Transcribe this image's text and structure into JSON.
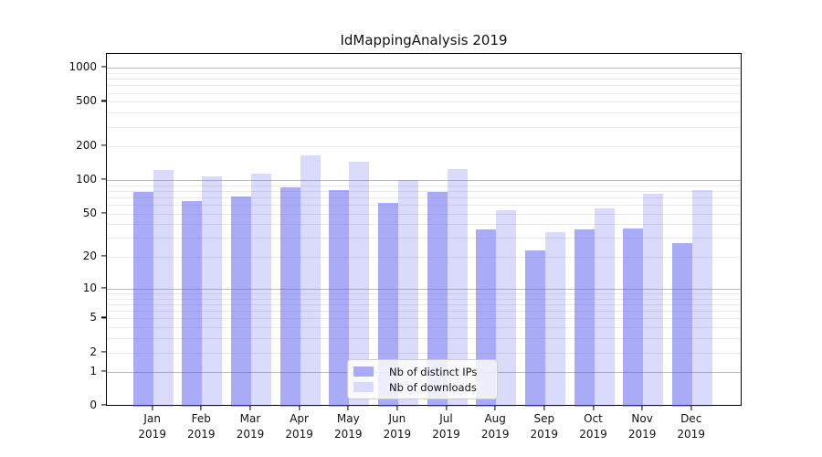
{
  "title": "IdMappingAnalysis 2019",
  "chart_data": {
    "type": "bar",
    "categories": [
      "Jan",
      "Feb",
      "Mar",
      "Apr",
      "May",
      "Jun",
      "Jul",
      "Aug",
      "Sep",
      "Oct",
      "Nov",
      "Dec"
    ],
    "year_label": "2019",
    "series": [
      {
        "name": "Nb of distinct IPs",
        "values": [
          78,
          65,
          72,
          87,
          81,
          62,
          78,
          36,
          23,
          36,
          37,
          27
        ],
        "fill": "rgba(85,87,238,0.5)",
        "swatch": "#aaabf6"
      },
      {
        "name": "Nb of downloads",
        "values": [
          124,
          109,
          115,
          166,
          146,
          101,
          125,
          54,
          34,
          56,
          75,
          81
        ],
        "fill": "rgba(85,87,238,0.22)",
        "swatch": "#dadbfb"
      }
    ],
    "yscale": "log1p",
    "ylim": [
      0,
      1330
    ],
    "ytick_labels": [
      "0",
      "1",
      "2",
      "5",
      "10",
      "20",
      "50",
      "100",
      "200",
      "500",
      "1000"
    ],
    "ytick_values": [
      0,
      1,
      2,
      5,
      10,
      20,
      50,
      100,
      200,
      500,
      1000
    ],
    "major_gridlines": [
      1,
      10,
      100,
      1000
    ],
    "minor_gridlines": [
      2,
      3,
      4,
      5,
      6,
      7,
      8,
      9,
      20,
      30,
      40,
      50,
      60,
      70,
      80,
      90,
      200,
      300,
      400,
      500,
      600,
      700,
      800,
      900
    ],
    "grid": "on",
    "grid_major_color": "#bbbbbb",
    "grid_minor_color": "#eaeaea",
    "axis_color": "#000000",
    "legend": {
      "position": "lower center",
      "entries": [
        "Nb of distinct IPs",
        "Nb of downloads"
      ]
    }
  }
}
